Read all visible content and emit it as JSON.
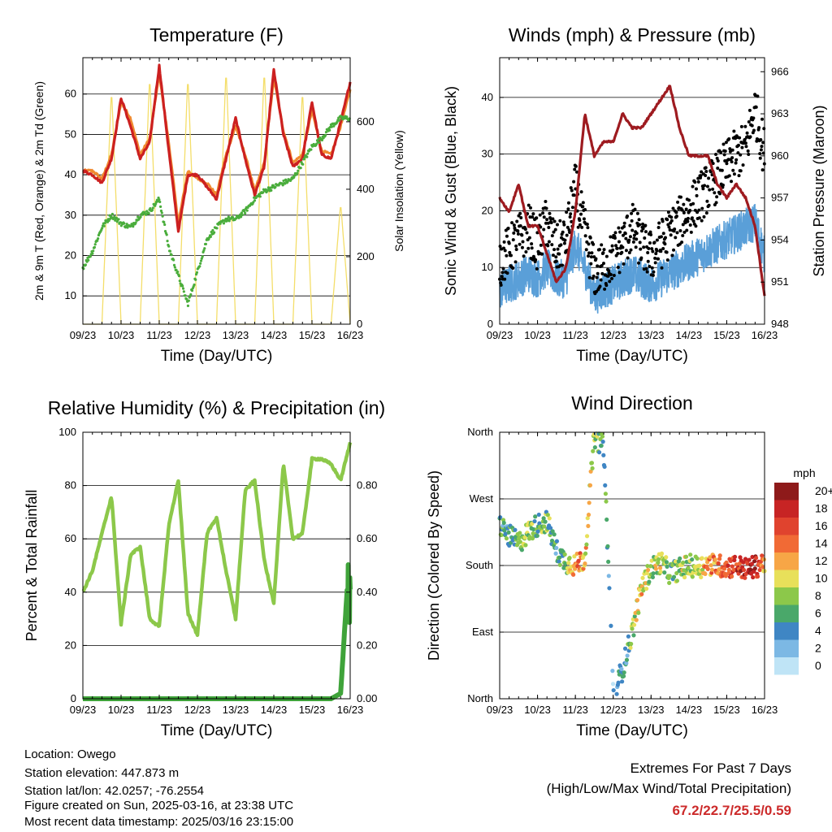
{
  "colors": {
    "t2m": "#cc2020",
    "t9m": "#f08a30",
    "td": "#4aad3c",
    "solar": "#f4de6a",
    "gust": "#000000",
    "wind": "#5a9fd8",
    "pressure": "#9e1b20",
    "rh": "#8cc84a",
    "precip": "#3fa33a",
    "extremes": "#cc2a2a"
  },
  "x_ticks": [
    "09/23",
    "10/23",
    "11/23",
    "12/23",
    "13/23",
    "14/23",
    "15/23",
    "16/23"
  ],
  "temperature": {
    "title": "Temperature (F)",
    "xlabel": "Time (Day/UTC)",
    "ylabel_left": "2m & 9m T (Red, Orange) & 2m Td (Green)",
    "ylabel_right": "Solar Insolation (Yellow)",
    "left_ticks": [
      "10",
      "20",
      "30",
      "40",
      "50",
      "60"
    ],
    "right_ticks": [
      "0",
      "200",
      "400",
      "600"
    ]
  },
  "winds": {
    "title": "Winds (mph) & Pressure (mb)",
    "xlabel": "Time (Day/UTC)",
    "ylabel_left": "Sonic Wind & Gust (Blue, Black)",
    "ylabel_right": "Station Pressure (Maroon)",
    "left_ticks": [
      "0",
      "10",
      "20",
      "30",
      "40"
    ],
    "right_ticks": [
      "948",
      "951",
      "954",
      "957",
      "960",
      "963",
      "966"
    ]
  },
  "humidity": {
    "title": "Relative Humidity (%) & Precipitation (in)",
    "xlabel": "Time (Day/UTC)",
    "ylabel_left": "Percent & Total Rainfall",
    "left_ticks": [
      "0",
      "20",
      "40",
      "60",
      "80",
      "100"
    ],
    "right_ticks": [
      "0.00",
      "0.20",
      "0.40",
      "0.60",
      "0.80"
    ]
  },
  "direction": {
    "title": "Wind Direction",
    "xlabel": "Time (Day/UTC)",
    "ylabel_left": "Direction (Colored By Speed)",
    "left_ticks": [
      "North",
      "East",
      "South",
      "West",
      "North"
    ],
    "legend_title": "mph",
    "legend_labels": [
      "20+",
      "18",
      "16",
      "14",
      "12",
      "10",
      "8",
      "6",
      "4",
      "2",
      "0"
    ],
    "legend_colors": [
      "#8e1a1a",
      "#c72424",
      "#e0432e",
      "#f16a35",
      "#f7a646",
      "#e8e05a",
      "#8cc84a",
      "#4aa86a",
      "#3f86c4",
      "#7cb8e4",
      "#bfe4f6"
    ]
  },
  "footer": {
    "location": "Location: Owego",
    "elevation": "Station elevation: 447.873 m",
    "latlon": "Station lat/lon: 42.0257; -76.2554",
    "created": "Figure created on Sun, 2025-03-16, at 23:38 UTC",
    "recent": "Most recent data timestamp: 2025/03/16 23:15:00",
    "extremes_title": "Extremes For Past 7 Days",
    "extremes_sub": "(High/Low/Max Wind/Total Precipitation)",
    "extremes_value": "67.2/22.7/25.5/0.59"
  },
  "chart_data": [
    {
      "type": "line",
      "title": "Temperature (F)",
      "xlabel": "Time (Day/UTC)",
      "x": [
        9,
        9.25,
        9.5,
        9.75,
        10,
        10.25,
        10.5,
        10.75,
        11,
        11.25,
        11.5,
        11.75,
        12,
        12.25,
        12.5,
        12.75,
        13,
        13.25,
        13.5,
        13.75,
        14,
        14.25,
        14.5,
        14.75,
        15,
        15.25,
        15.5,
        15.75,
        16
      ],
      "ylim": [
        3,
        69
      ],
      "y2lim": [
        0,
        790
      ],
      "series": [
        {
          "values": [
            41,
            40,
            38,
            44,
            59,
            52,
            44,
            48,
            67,
            46,
            26,
            40,
            40,
            37,
            34,
            44,
            54,
            44,
            35,
            42,
            66,
            50,
            42,
            44,
            58,
            45,
            44,
            53,
            63
          ]
        },
        {
          "values": [
            41,
            41,
            39,
            45,
            58,
            54,
            45,
            49,
            65,
            48,
            28,
            41,
            39,
            38,
            35,
            45,
            52,
            45,
            36,
            43,
            64,
            51,
            43,
            45,
            56,
            46,
            45,
            52,
            61
          ]
        },
        {
          "values": [
            17,
            21,
            27,
            30,
            28,
            27,
            30,
            31,
            34,
            22,
            15,
            8,
            16,
            24,
            27,
            29,
            29,
            31,
            34,
            36,
            37,
            38,
            39,
            43,
            47,
            49,
            52,
            54,
            54
          ]
        },
        {
          "values": [
            0,
            0,
            0,
            700,
            0,
            0,
            0,
            740,
            0,
            0,
            0,
            740,
            0,
            0,
            0,
            760,
            0,
            0,
            0,
            760,
            0,
            0,
            0,
            700,
            0,
            0,
            0,
            360,
            0
          ]
        }
      ]
    },
    {
      "type": "scatter",
      "title": "Winds (mph) & Pressure (mb)",
      "xlabel": "Time (Day/UTC)",
      "x": [
        9,
        9.25,
        9.5,
        9.75,
        10,
        10.25,
        10.5,
        10.75,
        11,
        11.25,
        11.5,
        11.75,
        12,
        12.25,
        12.5,
        12.75,
        13,
        13.25,
        13.5,
        13.75,
        14,
        14.25,
        14.5,
        14.75,
        15,
        15.25,
        15.5,
        15.75,
        16
      ],
      "ylim": [
        0,
        47
      ],
      "y2lim": [
        948,
        967
      ],
      "series": [
        {
          "values": [
            6,
            7,
            8,
            9,
            8,
            10,
            8,
            8,
            14,
            10,
            5,
            6,
            7,
            8,
            9,
            8,
            7,
            8,
            9,
            10,
            11,
            12,
            13,
            14,
            15,
            16,
            17,
            18,
            12
          ]
        },
        {
          "values": [
            11,
            13,
            15,
            17,
            14,
            18,
            13,
            15,
            24,
            16,
            9,
            10,
            12,
            14,
            17,
            14,
            12,
            14,
            16,
            18,
            20,
            22,
            24,
            26,
            28,
            30,
            31,
            38,
            30
          ]
        },
        {
          "values": [
            957,
            956,
            958,
            955,
            955,
            953,
            951,
            952,
            956,
            963,
            960,
            961,
            961,
            963,
            962,
            962,
            963,
            964,
            965,
            962,
            960,
            960,
            960,
            958,
            957,
            958,
            957,
            955,
            950
          ]
        }
      ]
    },
    {
      "type": "line",
      "title": "Relative Humidity (%) & Precipitation (in)",
      "xlabel": "Time (Day/UTC)",
      "ylabel": "Percent & Total Rainfall",
      "x": [
        9,
        9.25,
        9.5,
        9.75,
        10,
        10.25,
        10.5,
        10.75,
        11,
        11.25,
        11.5,
        11.75,
        12,
        12.25,
        12.5,
        12.75,
        13,
        13.25,
        13.5,
        13.75,
        14,
        14.25,
        14.5,
        14.75,
        15,
        15.25,
        15.5,
        15.75,
        16
      ],
      "ylim": [
        0,
        100
      ],
      "y2lim": [
        0,
        1.0
      ],
      "series": [
        {
          "values": [
            40,
            48,
            62,
            76,
            28,
            54,
            57,
            30,
            27,
            65,
            82,
            32,
            24,
            62,
            68,
            48,
            30,
            78,
            82,
            52,
            36,
            88,
            60,
            62,
            90,
            90,
            88,
            82,
            96
          ]
        },
        {
          "values": [
            0,
            0,
            0,
            0,
            0,
            0,
            0,
            0,
            0,
            0,
            0,
            0,
            0,
            0,
            0,
            0,
            0,
            0,
            0,
            0,
            0,
            0,
            0,
            0,
            0,
            0,
            0,
            0.02,
            0.59
          ]
        }
      ]
    },
    {
      "type": "scatter",
      "title": "Wind Direction",
      "xlabel": "Time (Day/UTC)",
      "ylabel": "Direction (Colored By Speed)",
      "x": [
        9,
        9.25,
        9.5,
        9.75,
        10,
        10.25,
        10.5,
        10.75,
        11,
        11.25,
        11.5,
        11.75,
        12,
        12.25,
        12.5,
        12.75,
        13,
        13.25,
        13.5,
        13.75,
        14,
        14.25,
        14.5,
        14.75,
        15,
        15.25,
        15.5,
        15.75,
        16
      ],
      "ylim": [
        0,
        360
      ],
      "series": [
        {
          "values": [
            235,
            220,
            210,
            225,
            235,
            240,
            200,
            185,
            180,
            190,
            355,
            340,
            10,
            40,
            90,
            150,
            175,
            185,
            170,
            175,
            180,
            178,
            182,
            180,
            178,
            180,
            175,
            178,
            185
          ]
        },
        {
          "values": [
            6,
            5,
            7,
            8,
            6,
            7,
            5,
            6,
            14,
            12,
            8,
            6,
            3,
            4,
            7,
            12,
            8,
            10,
            6,
            9,
            8,
            10,
            13,
            14,
            15,
            16,
            18,
            18,
            12
          ]
        }
      ]
    }
  ]
}
